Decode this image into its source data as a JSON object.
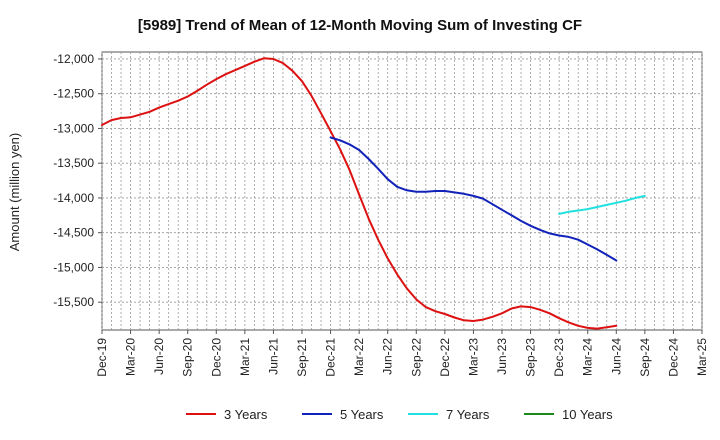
{
  "chart_data": {
    "type": "line",
    "title": "[5989]  Trend of Mean of 12-Month Moving Sum of Investing CF",
    "xlabel": "",
    "ylabel": "Amount (million yen)",
    "ylim": [
      -15900,
      -11900
    ],
    "yticks": [
      -12000,
      -12500,
      -13000,
      -13500,
      -14000,
      -14500,
      -15000,
      -15500
    ],
    "ytick_labels": [
      "-12,000",
      "-12,500",
      "-13,000",
      "-13,500",
      "-14,000",
      "-14,500",
      "-15,000",
      "-15,500"
    ],
    "x_categories": [
      "Dec-19",
      "Mar-20",
      "Jun-20",
      "Sep-20",
      "Dec-20",
      "Mar-21",
      "Jun-21",
      "Sep-21",
      "Dec-21",
      "Mar-22",
      "Jun-22",
      "Sep-22",
      "Dec-22",
      "Mar-23",
      "Jun-23",
      "Sep-23",
      "Dec-23",
      "Mar-24",
      "Jun-24",
      "Sep-24",
      "Dec-24",
      "Mar-25"
    ],
    "grid": true,
    "legend_position": "bottom",
    "series": [
      {
        "name": "3 Years",
        "color": "#dd1111",
        "start_index": 0,
        "values": [
          -12950,
          -12880,
          -12850,
          -12840,
          -12800,
          -12760,
          -12700,
          -12650,
          -12600,
          -12540,
          -12460,
          -12370,
          -12290,
          -12220,
          -12160,
          -12100,
          -12040,
          -11990,
          -12000,
          -12060,
          -12170,
          -12320,
          -12530,
          -12780,
          -13040,
          -13300,
          -13600,
          -13950,
          -14300,
          -14600,
          -14870,
          -15100,
          -15300,
          -15460,
          -15570,
          -15630,
          -15670,
          -15720,
          -15760,
          -15770,
          -15750,
          -15710,
          -15660,
          -15590,
          -15560,
          -15570,
          -15610,
          -15660,
          -15730,
          -15790,
          -15840,
          -15870,
          -15880,
          -15860,
          -15840
        ]
      },
      {
        "name": "5 Years",
        "color": "#1122bb",
        "start_index": 24,
        "values": [
          -13130,
          -13170,
          -13230,
          -13310,
          -13440,
          -13580,
          -13730,
          -13840,
          -13890,
          -13910,
          -13910,
          -13900,
          -13900,
          -13920,
          -13940,
          -13970,
          -14010,
          -14090,
          -14170,
          -14250,
          -14330,
          -14400,
          -14460,
          -14510,
          -14540,
          -14560,
          -14600,
          -14670,
          -14740,
          -14820,
          -14900
        ]
      },
      {
        "name": "7 Years",
        "color": "#22e0e0",
        "start_index": 48,
        "values": [
          -14230,
          -14200,
          -14180,
          -14160,
          -14130,
          -14100,
          -14070,
          -14040,
          -14000,
          -13970
        ]
      },
      {
        "name": "10 Years",
        "color": "#1a8a1a",
        "start_index": 0,
        "values": []
      }
    ]
  }
}
